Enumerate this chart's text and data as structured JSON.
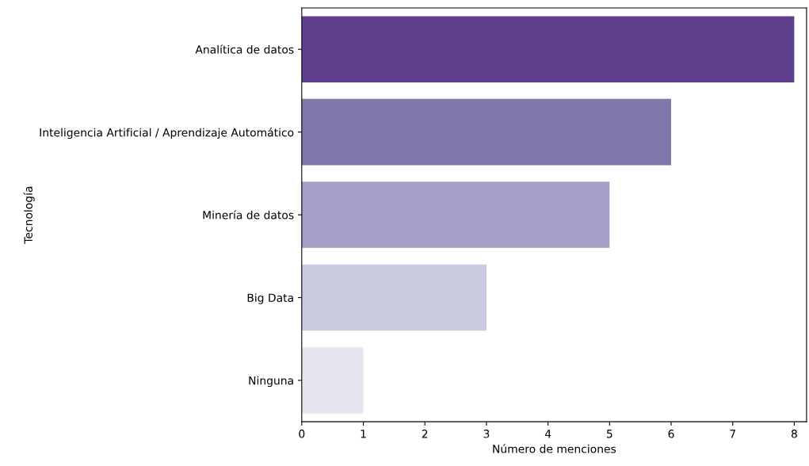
{
  "chart_data": {
    "type": "bar",
    "orientation": "horizontal",
    "xlabel": "Número de menciones",
    "ylabel": "Tecnología",
    "categories": [
      "Analítica de datos",
      "Inteligencia Artificial / Aprendizaje Automático",
      "Minería de datos",
      "Big Data",
      "Ninguna"
    ],
    "values": [
      8,
      6,
      5,
      3,
      1
    ],
    "colors": [
      "#5e3f8c",
      "#7f76aa",
      "#a39fc6",
      "#c9c9e0",
      "#e8e5f1"
    ],
    "xlim": [
      0,
      8.2
    ],
    "xticks": [
      0,
      1,
      2,
      3,
      4,
      5,
      6,
      7,
      8
    ],
    "grid": false,
    "legend": false
  }
}
